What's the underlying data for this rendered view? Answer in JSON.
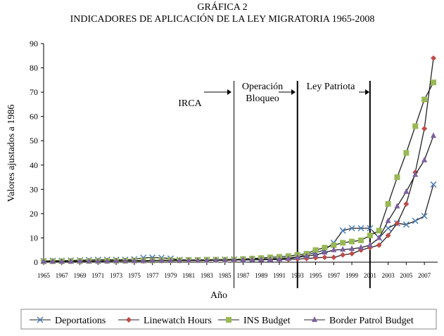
{
  "chart_data": {
    "type": "line",
    "title": "GRÁFICA 2",
    "subtitle": "INDICADORES DE APLICACIÓN DE LA LEY MIGRATORIA 1965-2008",
    "y_label": "Valores ajustados a 1986",
    "x_label": "Año",
    "x": [
      1965,
      1966,
      1967,
      1968,
      1969,
      1970,
      1971,
      1972,
      1973,
      1974,
      1975,
      1976,
      1977,
      1978,
      1979,
      1980,
      1981,
      1982,
      1983,
      1984,
      1985,
      1986,
      1987,
      1988,
      1989,
      1990,
      1991,
      1992,
      1993,
      1994,
      1995,
      1996,
      1997,
      1998,
      1999,
      2000,
      2001,
      2002,
      2003,
      2004,
      2005,
      2006,
      2007,
      2008
    ],
    "xlim": [
      1965,
      2008
    ],
    "xticks": [
      1965,
      1967,
      1969,
      1971,
      1973,
      1975,
      1977,
      1979,
      1981,
      1983,
      1985,
      1987,
      1989,
      1991,
      1993,
      1995,
      1997,
      1999,
      2001,
      2003,
      2005,
      2007
    ],
    "ylim": [
      0,
      90
    ],
    "yticks": [
      0,
      10,
      20,
      30,
      40,
      50,
      60,
      70,
      80,
      90
    ],
    "grid": false,
    "line_color": "#222222",
    "legend_position": "bottom",
    "series": [
      {
        "name": "Deportations",
        "color": "#4a7ebb",
        "marker": "x",
        "values": [
          0.5,
          0.6,
          0.6,
          0.7,
          0.8,
          0.9,
          1,
          1,
          1,
          1,
          1.2,
          1.8,
          1.9,
          1.8,
          1.5,
          1,
          0.9,
          0.9,
          1,
          1,
          1.1,
          1.2,
          1.1,
          1.2,
          1.3,
          1.4,
          1.6,
          1.8,
          2.2,
          3,
          4,
          5,
          8,
          13,
          14,
          14,
          14,
          10,
          14,
          16,
          15.5,
          17,
          19,
          32
        ]
      },
      {
        "name": "Linewatch Hours",
        "color": "#be4b48",
        "marker": "diamond",
        "values": [
          0.3,
          0.3,
          0.3,
          0.3,
          0.4,
          0.4,
          0.4,
          0.4,
          0.5,
          0.5,
          0.5,
          0.5,
          0.6,
          0.6,
          0.6,
          0.6,
          0.7,
          0.7,
          0.7,
          0.8,
          0.8,
          0.9,
          0.9,
          1,
          1,
          1,
          1.1,
          1.2,
          1.3,
          1.5,
          1.8,
          2,
          2,
          3,
          3.5,
          5,
          6,
          7,
          11,
          16,
          24,
          37,
          55,
          84
        ]
      },
      {
        "name": "INS Budget",
        "color": "#98b954",
        "marker": "square",
        "values": [
          0.4,
          0.4,
          0.4,
          0.5,
          0.5,
          0.5,
          0.5,
          0.6,
          0.6,
          0.6,
          0.7,
          0.7,
          0.7,
          0.8,
          0.8,
          0.8,
          0.9,
          0.9,
          1,
          1,
          1,
          1.1,
          1.3,
          1.5,
          1.7,
          2,
          2.2,
          2.5,
          3,
          3.5,
          5,
          6,
          7,
          8,
          8.5,
          9,
          11,
          13,
          24,
          35,
          45,
          56,
          67,
          74
        ]
      },
      {
        "name": "Border Patrol Budget",
        "color": "#7d60a0",
        "marker": "triangle",
        "values": [
          0.3,
          0.3,
          0.3,
          0.3,
          0.4,
          0.4,
          0.4,
          0.4,
          0.5,
          0.5,
          0.5,
          0.5,
          0.6,
          0.6,
          0.6,
          0.6,
          0.7,
          0.7,
          0.7,
          0.8,
          0.8,
          0.9,
          0.9,
          1,
          1,
          1.1,
          1.2,
          1.5,
          2,
          2.5,
          3,
          4,
          5,
          5.2,
          5.5,
          6,
          7,
          10,
          17,
          23,
          29,
          36,
          42,
          52
        ]
      }
    ],
    "vlines": [
      {
        "x": 1986,
        "width": 1
      },
      {
        "x": 1993,
        "width": 2
      },
      {
        "x": 2001,
        "width": 2
      }
    ],
    "annotations": [
      {
        "lines": [
          "IRCA"
        ]
      },
      {
        "lines": [
          "Operación",
          "Bloqueo"
        ]
      },
      {
        "lines": [
          "Ley Patriota"
        ]
      }
    ]
  }
}
